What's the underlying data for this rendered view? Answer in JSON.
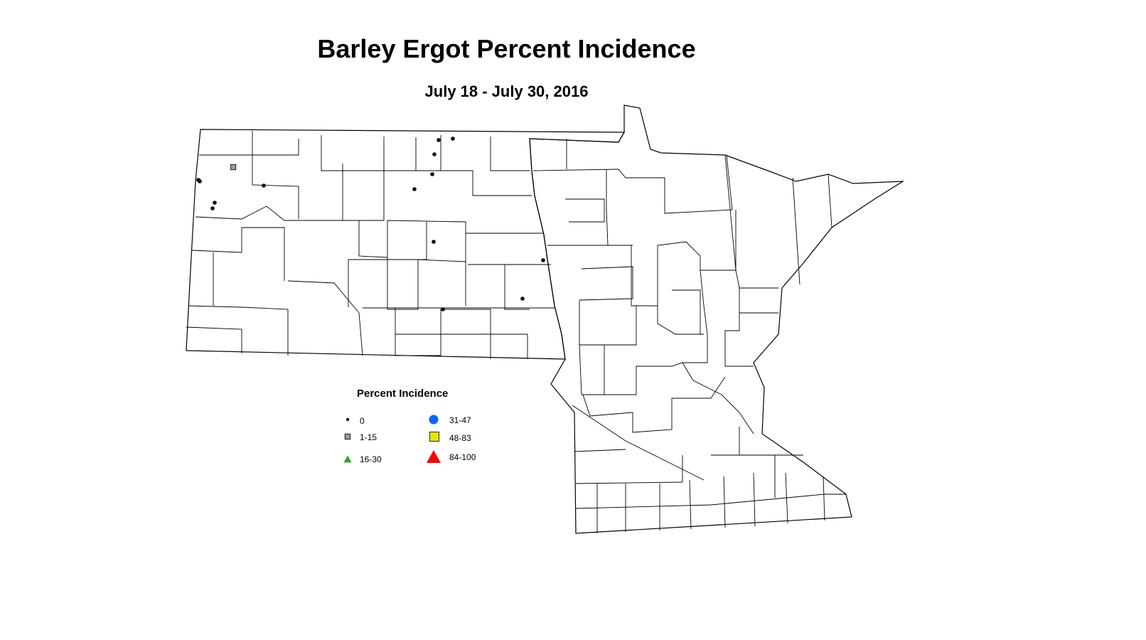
{
  "title": "Barley Ergot Percent Incidence",
  "subtitle": "July 18 - July 30, 2016",
  "legend": {
    "title": "Percent Incidence",
    "items": [
      {
        "label": "0",
        "shape": "dot",
        "color": "#000000"
      },
      {
        "label": "1-15",
        "shape": "square",
        "color": "#999999"
      },
      {
        "label": "16-30",
        "shape": "triangle",
        "color": "#33a02c"
      },
      {
        "label": "31-47",
        "shape": "circle",
        "color": "#0066ff"
      },
      {
        "label": "48-83",
        "shape": "square",
        "color": "#e6e600"
      },
      {
        "label": "84-100",
        "shape": "triangle",
        "color": "#ff0000"
      }
    ]
  },
  "observations": [
    {
      "category": "0"
    },
    {
      "category": "0"
    },
    {
      "category": "0"
    },
    {
      "category": "0"
    },
    {
      "category": "0"
    },
    {
      "category": "0"
    },
    {
      "category": "0"
    },
    {
      "category": "0"
    },
    {
      "category": "0"
    },
    {
      "category": "0"
    },
    {
      "category": "0"
    },
    {
      "category": "0"
    },
    {
      "category": "0"
    },
    {
      "category": "0"
    },
    {
      "category": "0"
    },
    {
      "category": "1-15"
    }
  ]
}
